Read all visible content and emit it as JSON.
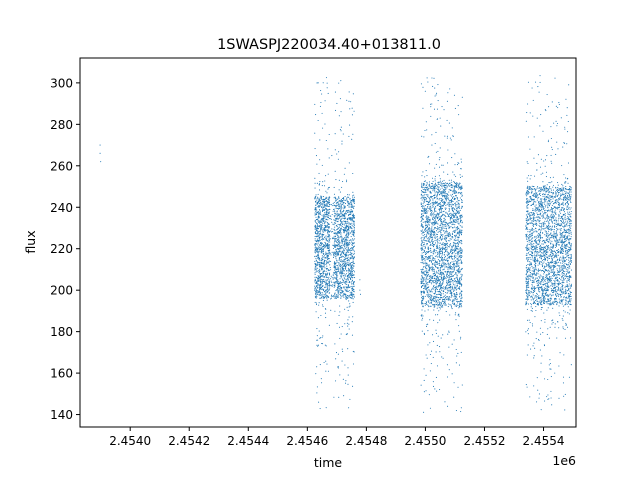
{
  "chart_data": {
    "type": "scatter",
    "title": "1SWASPJ220034.40+013811.0",
    "xlabel": "time",
    "ylabel": "flux",
    "x_offset_label": "1e6",
    "xlim": [
      2453830,
      2455510
    ],
    "ylim": [
      134,
      312
    ],
    "x_ticks": [
      2454000,
      2454200,
      2454400,
      2454600,
      2454800,
      2455000,
      2455200,
      2455400
    ],
    "x_tick_labels": [
      "2.4540",
      "2.4542",
      "2.4544",
      "2.4546",
      "2.4548",
      "2.4550",
      "2.4552",
      "2.4554"
    ],
    "y_ticks": [
      140,
      160,
      180,
      200,
      220,
      240,
      260,
      280,
      300
    ],
    "grid": false,
    "legend": "none",
    "point_color": "#1f77b4",
    "isolated_points": [
      {
        "x": 2453898,
        "y": 270
      },
      {
        "x": 2453898,
        "y": 266
      },
      {
        "x": 2453900,
        "y": 262
      },
      {
        "x": 2454778,
        "y": 205
      },
      {
        "x": 2454778,
        "y": 200
      },
      {
        "x": 2454780,
        "y": 198
      },
      {
        "x": 2455108,
        "y": 238
      },
      {
        "x": 2455109,
        "y": 230
      },
      {
        "x": 2455110,
        "y": 228
      }
    ],
    "seasons": [
      {
        "x_start": 2454625,
        "x_end": 2454760,
        "core_min": 196,
        "core_max": 245,
        "outlier_min": 142,
        "outlier_max": 304,
        "gap_start": 2454676,
        "gap_end": 2454690
      },
      {
        "x_start": 2454985,
        "x_end": 2455125,
        "core_min": 192,
        "core_max": 252,
        "outlier_min": 141,
        "outlier_max": 305
      },
      {
        "x_start": 2455340,
        "x_end": 2455495,
        "core_min": 193,
        "core_max": 250,
        "outlier_min": 141,
        "outlier_max": 304
      }
    ]
  }
}
